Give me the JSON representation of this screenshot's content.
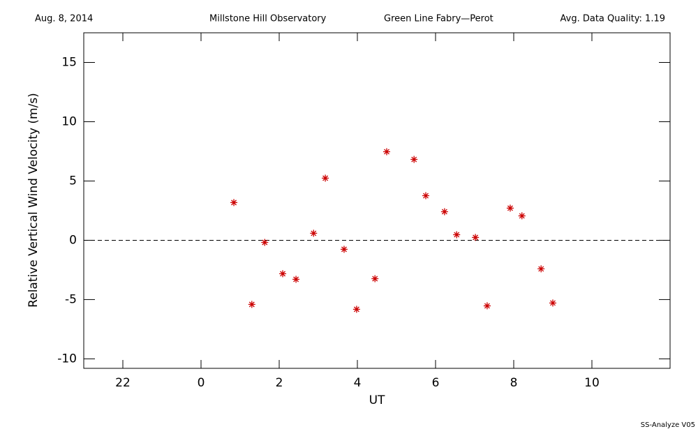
{
  "header": {
    "date": "Aug. 8, 2014",
    "observatory": "Millstone Hill Observatory",
    "instrument": "Green Line Fabry—Perot",
    "quality": "Avg. Data Quality: 1.19"
  },
  "footer": "SS-Analyze V05",
  "chart_data": {
    "type": "scatter",
    "x_label": "UT",
    "y_label": "Relative Vertical Wind Velocity (m/s)",
    "xlim": [
      -3,
      12
    ],
    "ylim": [
      -10.8,
      17.5
    ],
    "xticks": [
      {
        "value": -2,
        "label": "22"
      },
      0,
      2,
      4,
      6,
      8,
      10
    ],
    "yticks": [
      -10,
      -5,
      0,
      5,
      10,
      15
    ],
    "reference_line": {
      "y": 0,
      "style": "dashed"
    },
    "color": "#cc0000",
    "marker": "asterisk",
    "x": [
      0.84,
      1.3,
      1.63,
      2.09,
      2.43,
      2.88,
      3.18,
      3.66,
      3.98,
      4.45,
      4.75,
      5.45,
      5.75,
      6.23,
      6.54,
      7.02,
      7.32,
      7.91,
      8.21,
      8.7,
      9.0
    ],
    "values": [
      3.18,
      -5.41,
      -0.18,
      -2.82,
      -3.29,
      0.59,
      5.24,
      -0.76,
      -5.82,
      -3.24,
      7.47,
      6.82,
      3.76,
      2.41,
      0.47,
      0.24,
      -5.53,
      2.71,
      2.06,
      -2.41,
      -5.29
    ]
  }
}
